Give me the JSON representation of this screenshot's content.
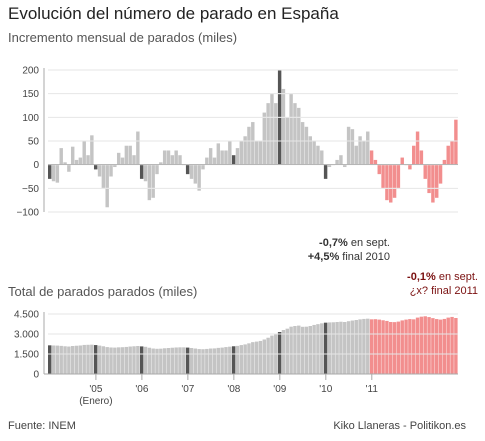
{
  "header": {
    "title": "Evolución del número de parado en España",
    "subtitle_top": "Incremento mensual de parados (miles)",
    "subtitle_bottom": "Total de parados parados (miles)"
  },
  "annotations": {
    "sept2010": {
      "change": "-0,7%",
      "change_label": " en sept.",
      "final": "+4,5%",
      "final_label": " final 2010"
    },
    "sept2011": {
      "change": "-0,1%",
      "change_label": " en sept.",
      "final_label": "¿x? final 2011"
    }
  },
  "footer": {
    "source": "Fuente: INEM",
    "credit": "Kiko Llaneras - Politikon.es"
  },
  "colors": {
    "bar": "#c4c4c4",
    "january": "#555555",
    "highlight": "#f28e8e",
    "axis": "#aaaaaa"
  },
  "x_axis": {
    "labels": [
      "'05",
      "'06",
      "'07",
      "'08",
      "'09",
      "'10",
      "'11"
    ],
    "first_sublabel": "(Enero)"
  },
  "chart_data": [
    {
      "type": "bar",
      "title": "Incremento mensual de parados (miles)",
      "ylim": [
        -100,
        200
      ],
      "yticks": [
        -100,
        -50,
        0,
        50,
        100,
        150,
        200
      ],
      "ytick_labels": [
        "−100",
        "−50",
        "0",
        "50",
        "100",
        "150",
        "200"
      ],
      "start": "2004-01",
      "values": [
        -30,
        -35,
        -38,
        35,
        5,
        -15,
        38,
        10,
        15,
        50,
        20,
        62,
        -10,
        -25,
        -50,
        -90,
        -25,
        -5,
        25,
        15,
        40,
        40,
        20,
        70,
        -30,
        -35,
        -75,
        -70,
        -20,
        5,
        30,
        30,
        20,
        30,
        20,
        0,
        -20,
        -30,
        -40,
        -55,
        -10,
        15,
        35,
        15,
        45,
        30,
        30,
        50,
        20,
        35,
        50,
        60,
        80,
        90,
        50,
        50,
        110,
        130,
        150,
        130,
        200,
        160,
        100,
        150,
        130,
        120,
        90,
        80,
        60,
        50,
        40,
        30,
        -30,
        -5,
        0,
        10,
        20,
        -5,
        80,
        75,
        40,
        60,
        50,
        70,
        30,
        10,
        -20,
        -50,
        -75,
        -80,
        -70,
        -50,
        15,
        0,
        -10,
        40,
        70,
        30,
        -30,
        -60,
        -80,
        -70,
        -40,
        10,
        40,
        50,
        95
      ],
      "highlight_from": "2011-01"
    },
    {
      "type": "area",
      "title": "Total de parados parados (miles)",
      "ylim": [
        0,
        4500
      ],
      "yticks": [
        0,
        1500,
        3000,
        4500
      ],
      "ytick_labels": [
        "0",
        "1.500",
        "3.000",
        "4.500"
      ],
      "start": "2004-01",
      "values": [
        2150,
        2140,
        2130,
        2110,
        2080,
        2060,
        2100,
        2120,
        2140,
        2180,
        2190,
        2200,
        2170,
        2130,
        2080,
        2020,
        1990,
        1980,
        2000,
        2010,
        2030,
        2060,
        2080,
        2100,
        2070,
        2040,
        1970,
        1910,
        1890,
        1900,
        1930,
        1950,
        1970,
        1990,
        2000,
        2000,
        1980,
        1950,
        1910,
        1870,
        1860,
        1880,
        1910,
        1920,
        1960,
        1980,
        2020,
        2050,
        2080,
        2110,
        2170,
        2220,
        2300,
        2390,
        2430,
        2480,
        2590,
        2720,
        2880,
        3010,
        3150,
        3300,
        3400,
        3550,
        3600,
        3630,
        3540,
        3550,
        3600,
        3680,
        3740,
        3800,
        3850,
        3870,
        3880,
        3900,
        3920,
        3900,
        3960,
        4010,
        4050,
        4100,
        4130,
        4150,
        4100,
        4110,
        4080,
        4030,
        3980,
        3900,
        3890,
        3930,
        4020,
        4080,
        4120,
        4100,
        4230,
        4300,
        4330,
        4270,
        4190,
        4120,
        4080,
        4130,
        4230,
        4280,
        4200
      ],
      "highlight_from": "2011-01"
    }
  ]
}
